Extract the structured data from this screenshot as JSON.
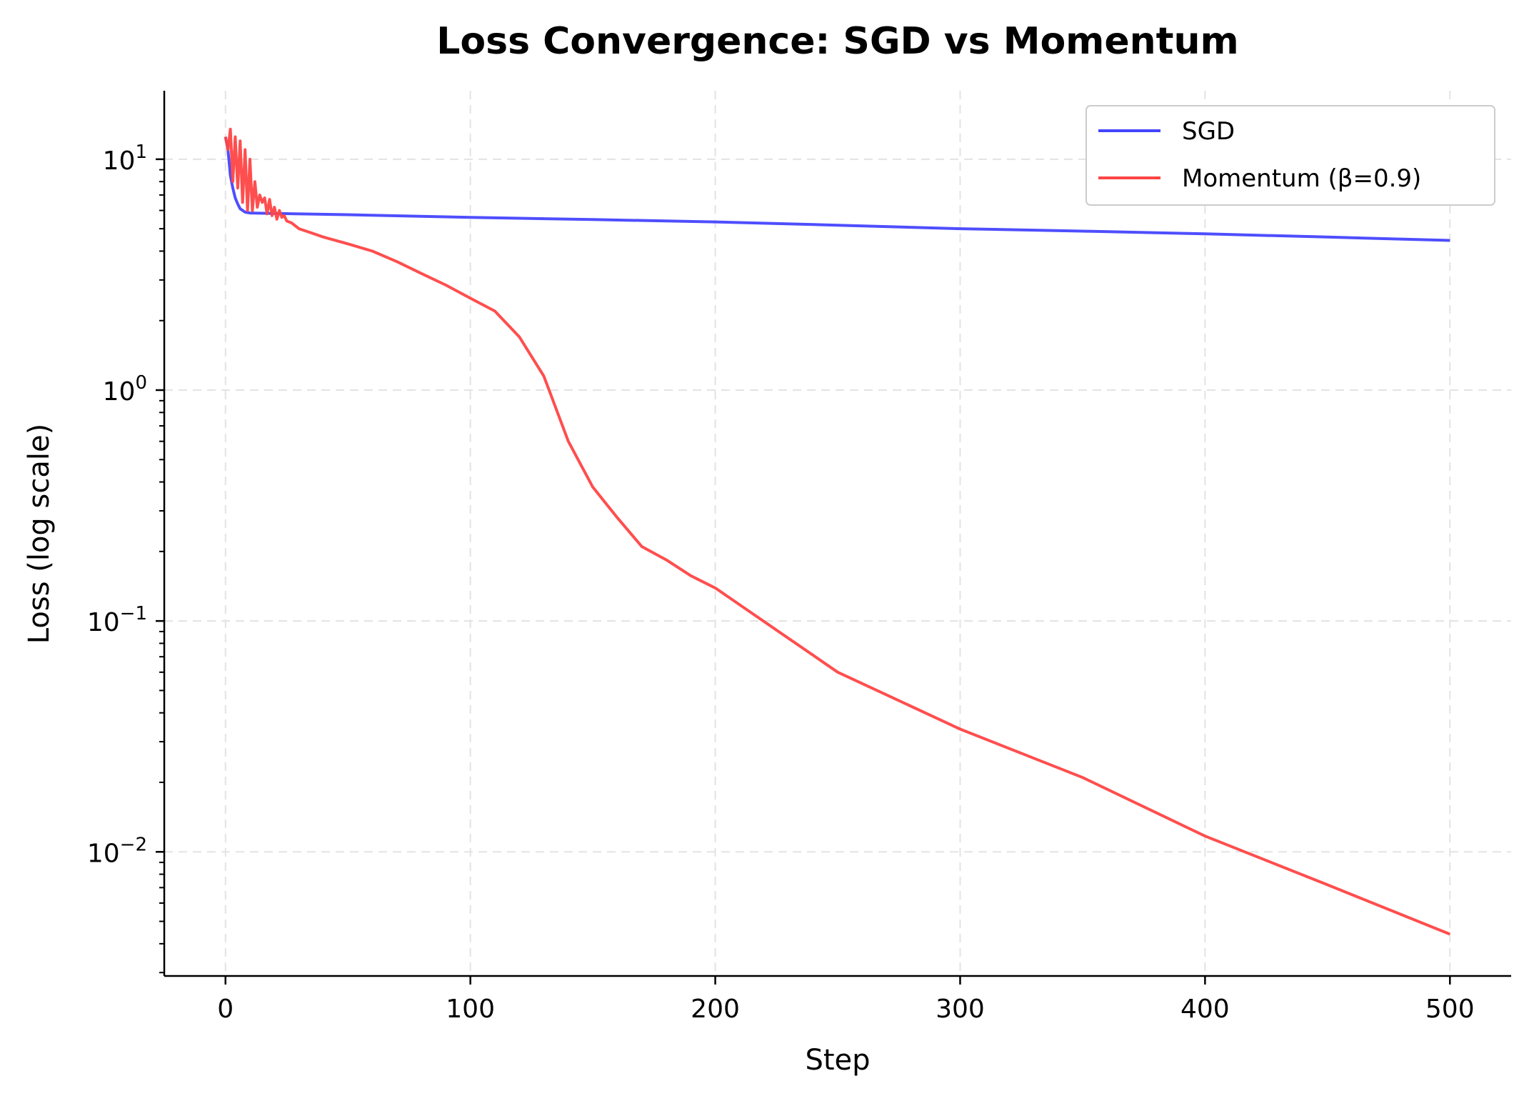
{
  "chart_data": {
    "type": "line",
    "title": "Loss Convergence: SGD vs Momentum",
    "xlabel": "Step",
    "ylabel": "Loss (log scale)",
    "xlim": [
      -25,
      525
    ],
    "ylim": [
      0.0029,
      19.8
    ],
    "yscale": "log",
    "grid": true,
    "legend_position": "top-right",
    "xticks": [
      0,
      100,
      200,
      300,
      400,
      500
    ],
    "xtick_labels": [
      "0",
      "100",
      "200",
      "300",
      "400",
      "500"
    ],
    "yticks": [
      10,
      1,
      0.1,
      0.01
    ],
    "ytick_labels": [
      {
        "base": "10",
        "exp": "1"
      },
      {
        "base": "10",
        "exp": "0"
      },
      {
        "base": "10",
        "exp": "−1"
      },
      {
        "base": "10",
        "exp": "−2"
      }
    ],
    "series": [
      {
        "name": "SGD",
        "color": "#4444ff",
        "x": [
          0,
          1,
          2,
          3,
          4,
          5,
          6,
          8,
          10,
          20,
          50,
          100,
          150,
          200,
          250,
          300,
          350,
          400,
          450,
          500
        ],
        "y": [
          12.5,
          11,
          8.5,
          7.5,
          6.8,
          6.4,
          6.1,
          5.9,
          5.85,
          5.82,
          5.75,
          5.6,
          5.48,
          5.35,
          5.18,
          5.0,
          4.88,
          4.75,
          4.6,
          4.45
        ]
      },
      {
        "name": "Momentum (β=0.9)",
        "color": "#ff4444",
        "x": [
          0,
          1,
          2,
          3,
          4,
          5,
          6,
          7,
          8,
          9,
          10,
          11,
          12,
          13,
          14,
          15,
          16,
          17,
          18,
          19,
          20,
          21,
          22,
          23,
          24,
          25,
          27,
          30,
          35,
          40,
          50,
          60,
          70,
          80,
          90,
          100,
          110,
          120,
          130,
          140,
          150,
          160,
          170,
          180,
          190,
          200,
          250,
          300,
          350,
          400,
          450,
          500
        ],
        "y": [
          12.5,
          11,
          13.5,
          8,
          12.5,
          7.5,
          12,
          6.5,
          11,
          6,
          10,
          6,
          8,
          6.2,
          7,
          6.5,
          6.8,
          5.8,
          6.7,
          5.7,
          6.2,
          5.5,
          6,
          5.6,
          5.7,
          5.4,
          5.3,
          5.0,
          4.8,
          4.6,
          4.3,
          4.0,
          3.6,
          3.2,
          2.85,
          2.5,
          2.2,
          1.7,
          1.15,
          0.6,
          0.38,
          0.28,
          0.21,
          0.184,
          0.157,
          0.139,
          0.06,
          0.034,
          0.021,
          0.0117,
          0.0072,
          0.0044
        ]
      }
    ]
  }
}
